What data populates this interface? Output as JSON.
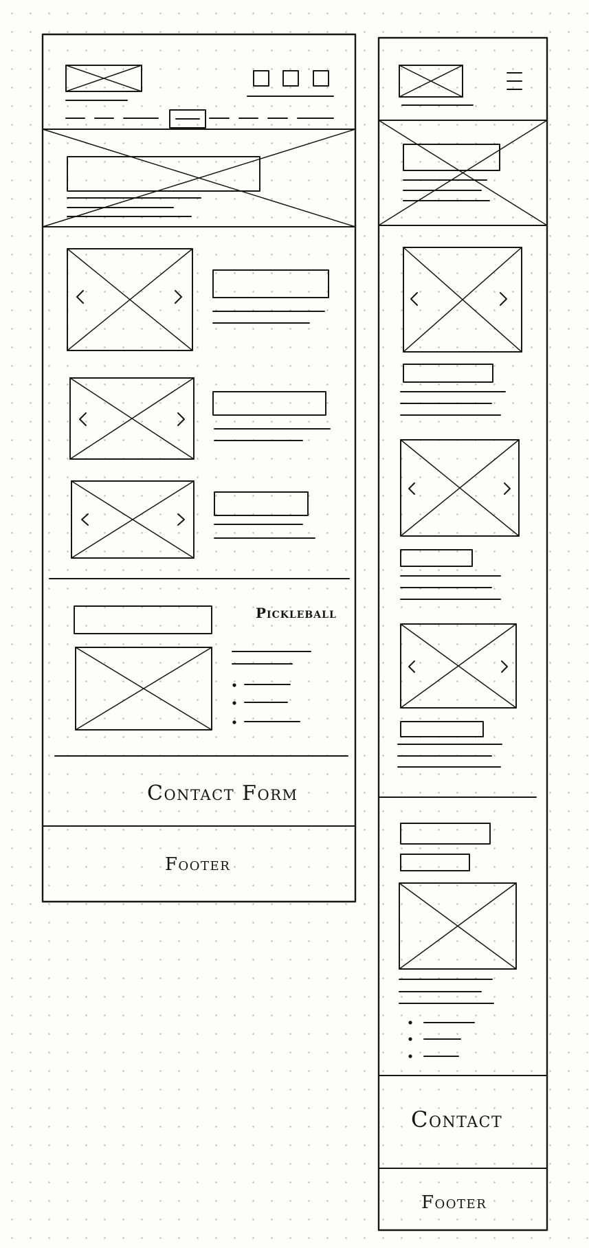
{
  "desktop": {
    "pickleball_label": "Pickleball",
    "contact_label": "Contact Form",
    "footer_label": "Footer"
  },
  "mobile": {
    "contact_label": "Contact",
    "footer_label": "Footer"
  }
}
